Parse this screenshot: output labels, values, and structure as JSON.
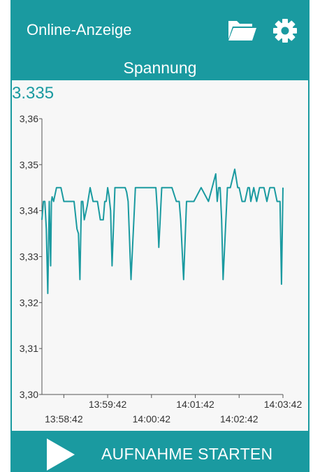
{
  "header": {
    "title": "Online-Anzeige",
    "folder_icon": "folder-open-icon",
    "settings_icon": "gear-icon"
  },
  "subtitle": "Spannung",
  "current_value": "3.335",
  "chart_data": {
    "type": "line",
    "title": "",
    "xlabel": "",
    "ylabel": "",
    "color": "#1a9aa0",
    "ylim": [
      3.3,
      3.36
    ],
    "xlim": [
      "13:58:12",
      "14:03:42"
    ],
    "y_ticks": [
      {
        "value": 3.3,
        "label": "3,30"
      },
      {
        "value": 3.31,
        "label": "3,31"
      },
      {
        "value": 3.32,
        "label": "3,32"
      },
      {
        "value": 3.33,
        "label": "3,33"
      },
      {
        "value": 3.34,
        "label": "3,34"
      },
      {
        "value": 3.35,
        "label": "3,35"
      },
      {
        "value": 3.36,
        "label": "3,36"
      }
    ],
    "x_ticks": [
      {
        "time": "13:58:42",
        "label": "13:58:42",
        "row": 2
      },
      {
        "time": "13:59:42",
        "label": "13:59:42",
        "row": 1
      },
      {
        "time": "14:00:42",
        "label": "14:00:42",
        "row": 2
      },
      {
        "time": "14:01:42",
        "label": "14:01:42",
        "row": 1
      },
      {
        "time": "14:02:42",
        "label": "14:02:42",
        "row": 2
      },
      {
        "time": "14:03:42",
        "label": "14:03:42",
        "row": 1
      }
    ],
    "series": [
      {
        "x": [
          "13:58:12",
          "13:58:14",
          "13:58:16",
          "13:58:18",
          "13:58:20",
          "13:58:22",
          "13:58:24",
          "13:58:25",
          "13:58:26",
          "13:58:28",
          "13:58:32",
          "13:58:38",
          "13:58:42",
          "13:58:48",
          "13:58:56",
          "13:59:00",
          "13:59:02",
          "13:59:04",
          "13:59:06",
          "13:59:08",
          "13:59:10",
          "13:59:14",
          "13:59:18",
          "13:59:22",
          "13:59:28",
          "13:59:32",
          "13:59:36",
          "13:59:38",
          "13:59:40",
          "13:59:42",
          "13:59:44",
          "13:59:46",
          "13:59:48",
          "13:59:52",
          "13:59:56",
          "14:00:00",
          "14:00:04",
          "14:00:06",
          "14:00:08",
          "14:00:10",
          "14:00:14",
          "14:00:20",
          "14:00:30",
          "14:00:40",
          "14:00:48",
          "14:00:50",
          "14:00:52",
          "14:00:56",
          "14:01:00",
          "14:01:10",
          "14:01:16",
          "14:01:18",
          "14:01:20",
          "14:01:22",
          "14:01:26",
          "14:01:30",
          "14:01:40",
          "14:01:50",
          "14:02:00",
          "14:02:10",
          "14:02:12",
          "14:02:14",
          "14:02:16",
          "14:02:18",
          "14:02:20",
          "14:02:26",
          "14:02:30",
          "14:02:36",
          "14:02:40",
          "14:02:42",
          "14:02:46",
          "14:02:50",
          "14:02:54",
          "14:02:56",
          "14:02:58",
          "14:03:02",
          "14:03:06",
          "14:03:10",
          "14:03:12",
          "14:03:14",
          "14:03:16",
          "14:03:20",
          "14:03:24",
          "14:03:30",
          "14:03:34",
          "14:03:38",
          "14:03:40",
          "14:03:42"
        ],
        "values": [
          3.338,
          3.342,
          3.342,
          3.336,
          3.322,
          3.342,
          3.328,
          3.342,
          3.343,
          3.342,
          3.345,
          3.345,
          3.342,
          3.342,
          3.342,
          3.336,
          3.335,
          3.325,
          3.342,
          3.342,
          3.338,
          3.341,
          3.345,
          3.342,
          3.342,
          3.338,
          3.338,
          3.342,
          3.342,
          3.345,
          3.343,
          3.34,
          3.328,
          3.345,
          3.345,
          3.345,
          3.345,
          3.345,
          3.344,
          3.342,
          3.325,
          3.345,
          3.345,
          3.345,
          3.345,
          3.34,
          3.332,
          3.345,
          3.345,
          3.345,
          3.342,
          3.342,
          3.342,
          3.338,
          3.325,
          3.342,
          3.342,
          3.345,
          3.342,
          3.348,
          3.342,
          3.345,
          3.345,
          3.338,
          3.325,
          3.345,
          3.345,
          3.349,
          3.345,
          3.345,
          3.342,
          3.342,
          3.345,
          3.345,
          3.342,
          3.345,
          3.342,
          3.345,
          3.345,
          3.345,
          3.345,
          3.342,
          3.345,
          3.345,
          3.342,
          3.342,
          3.324,
          3.345
        ]
      }
    ]
  },
  "footer": {
    "play_icon": "play-icon",
    "start_label": "AUFNAHME STARTEN"
  }
}
